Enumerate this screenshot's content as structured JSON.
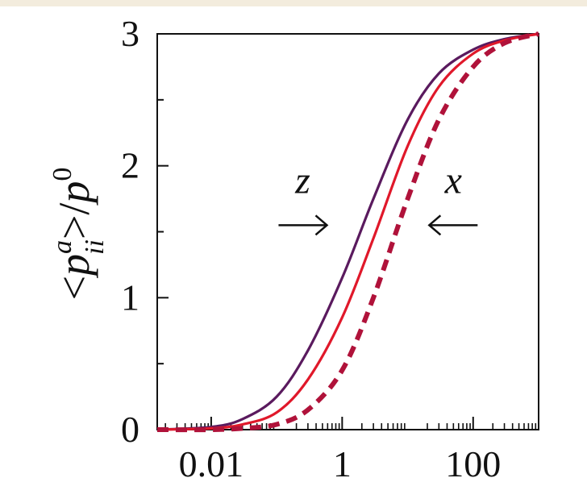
{
  "chart_data": {
    "type": "line",
    "title": "",
    "xlabel": "",
    "ylabel": "<p_ii^a>/p^0",
    "ylabel_parts": {
      "open": "<",
      "p": "p",
      "sup": "a",
      "sub": "ii",
      "close": ">/",
      "p0": "p",
      "zero": "0"
    },
    "x_scale": "log",
    "xlim": [
      0.0015,
      1000
    ],
    "ylim": [
      0,
      3
    ],
    "x_tick_labels": [
      "0.01",
      "1",
      "100"
    ],
    "x_ticks": [
      0.01,
      1,
      100
    ],
    "y_tick_labels": [
      "0",
      "1",
      "2",
      "3"
    ],
    "y_ticks": [
      0,
      1,
      2,
      3
    ],
    "annotations": [
      {
        "text": "z",
        "arrow": "right",
        "x": 0.25,
        "y": 1.55
      },
      {
        "text": "x",
        "arrow": "left",
        "x": 50,
        "y": 1.55
      }
    ],
    "series": [
      {
        "color": "#5a1a5e",
        "style": "solid",
        "x": [
          0.0015,
          0.01,
          0.03,
          0.1,
          0.3,
          1,
          3,
          10,
          30,
          100,
          300,
          1000
        ],
        "y": [
          0.0,
          0.02,
          0.08,
          0.25,
          0.6,
          1.15,
          1.75,
          2.35,
          2.7,
          2.88,
          2.96,
          3.0
        ]
      },
      {
        "color": "#e0182a",
        "style": "solid",
        "x": [
          0.0015,
          0.01,
          0.03,
          0.1,
          0.3,
          1,
          3,
          10,
          30,
          100,
          300,
          1000
        ],
        "y": [
          0.0,
          0.01,
          0.04,
          0.13,
          0.38,
          0.85,
          1.45,
          2.15,
          2.6,
          2.85,
          2.95,
          3.0
        ]
      },
      {
        "color": "#b0123a",
        "style": "dashed",
        "x": [
          0.0015,
          0.01,
          0.03,
          0.1,
          0.3,
          1,
          3,
          10,
          30,
          100,
          300,
          1000
        ],
        "y": [
          0.0,
          0.0,
          0.01,
          0.04,
          0.15,
          0.45,
          1.0,
          1.75,
          2.35,
          2.75,
          2.93,
          3.0
        ]
      }
    ]
  }
}
